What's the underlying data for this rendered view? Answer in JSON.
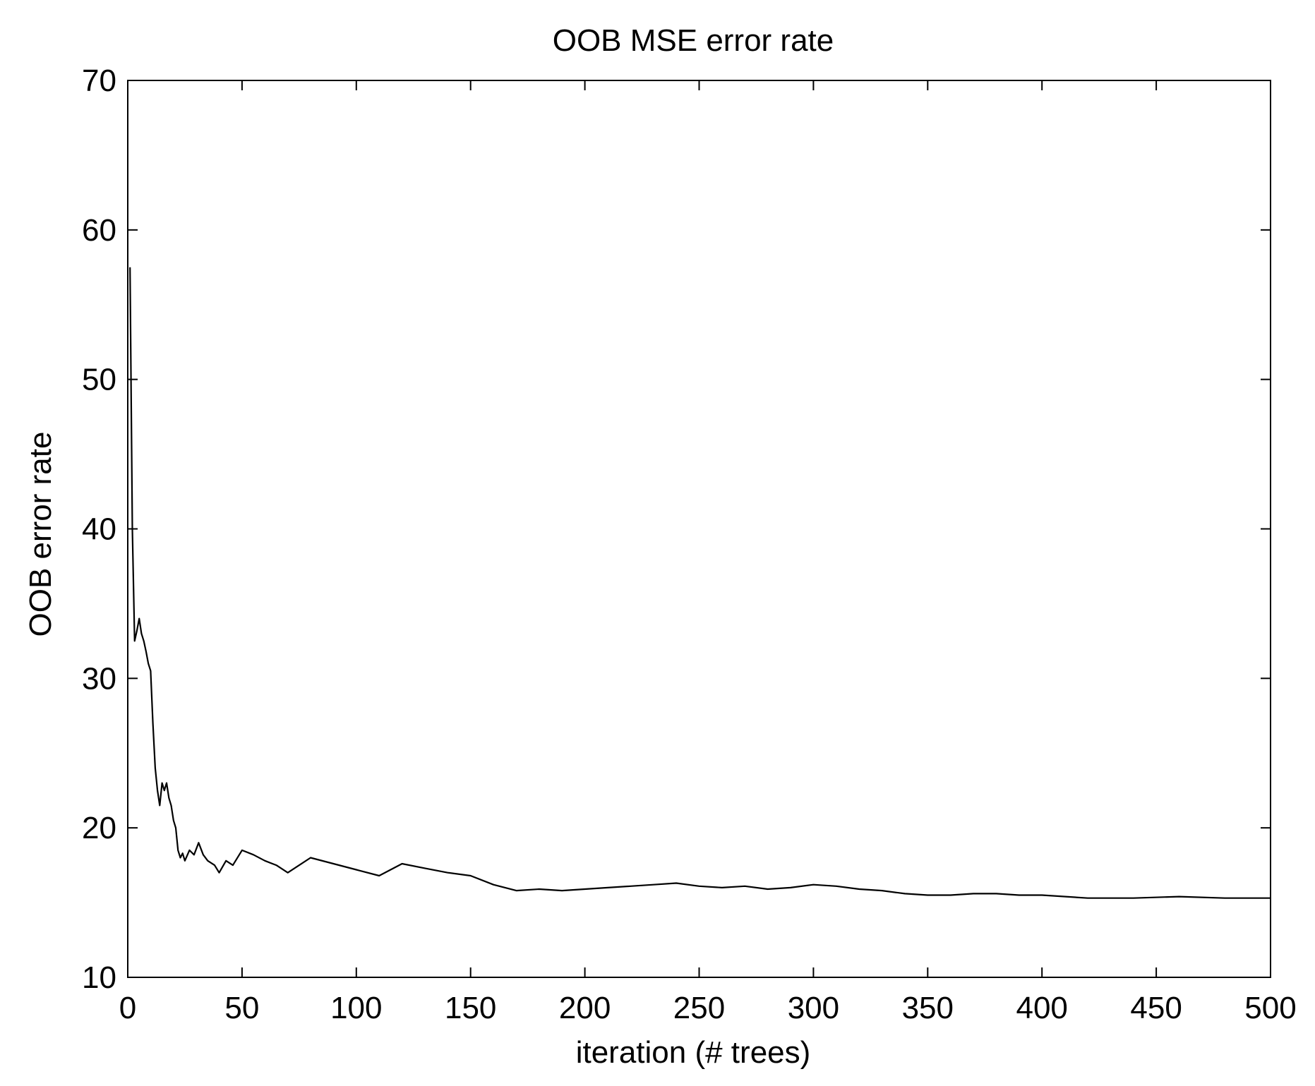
{
  "chart_data": {
    "type": "line",
    "title": "OOB MSE error rate",
    "xlabel": "iteration (# trees)",
    "ylabel": "OOB error rate",
    "xlim": [
      0,
      500
    ],
    "ylim": [
      10,
      70
    ],
    "xticks": [
      "0",
      "50",
      "100",
      "150",
      "200",
      "250",
      "300",
      "350",
      "400",
      "450",
      "500"
    ],
    "yticks": [
      "10",
      "20",
      "30",
      "40",
      "50",
      "60",
      "70"
    ],
    "grid": false,
    "line_color": "#000000",
    "series": [
      {
        "x": [
          1,
          2,
          3,
          4,
          5,
          6,
          7,
          8,
          9,
          10,
          11,
          12,
          13,
          14,
          15,
          16,
          17,
          18,
          19,
          20,
          21,
          22,
          23,
          24,
          25,
          27,
          29,
          31,
          33,
          35,
          38,
          40,
          43,
          46,
          50,
          55,
          60,
          65,
          70,
          75,
          80,
          90,
          100,
          110,
          115,
          120,
          130,
          140,
          150,
          160,
          170,
          180,
          190,
          200,
          210,
          220,
          230,
          240,
          250,
          260,
          270,
          280,
          290,
          300,
          310,
          320,
          330,
          340,
          350,
          360,
          370,
          380,
          390,
          400,
          420,
          440,
          460,
          480,
          500
        ],
        "y": [
          57.5,
          40,
          32.5,
          33.2,
          34,
          33,
          32.5,
          31.8,
          31,
          30.5,
          27,
          24,
          22.5,
          21.5,
          23,
          22.5,
          23,
          22,
          21.5,
          20.5,
          20,
          18.5,
          18,
          18.3,
          17.8,
          18.5,
          18.2,
          19,
          18.2,
          17.8,
          17.5,
          17,
          17.8,
          17.5,
          18.5,
          18.2,
          17.8,
          17.5,
          17,
          17.5,
          18,
          17.6,
          17.2,
          16.8,
          17.2,
          17.6,
          17.3,
          17,
          16.8,
          16.2,
          15.8,
          15.9,
          15.8,
          15.9,
          16,
          16.1,
          16.2,
          16.3,
          16.1,
          16,
          16.1,
          15.9,
          16,
          16.2,
          16.1,
          15.9,
          15.8,
          15.6,
          15.5,
          15.5,
          15.6,
          15.6,
          15.5,
          15.5,
          15.3,
          15.3,
          15.4,
          15.3,
          15.3
        ]
      }
    ]
  }
}
